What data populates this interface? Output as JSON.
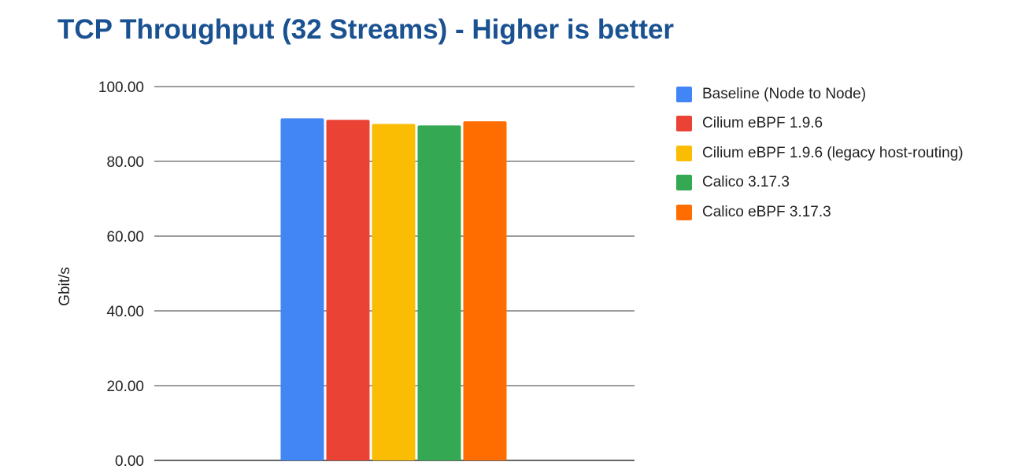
{
  "chart_data": {
    "type": "bar",
    "title": "TCP Throughput (32 Streams) - Higher is better",
    "ylabel": "Gbit/s",
    "xlabel": "",
    "ylim": [
      0,
      100
    ],
    "yticks": [
      "0.00",
      "20.00",
      "40.00",
      "60.00",
      "80.00",
      "100.00"
    ],
    "grid": true,
    "legend_position": "right",
    "series": [
      {
        "name": "Baseline (Node to Node)",
        "value": 91.5,
        "color": "#4285f4"
      },
      {
        "name": "Cilium eBPF 1.9.6",
        "value": 91.1,
        "color": "#ea4335"
      },
      {
        "name": "Cilium eBPF 1.9.6 (legacy host-routing)",
        "value": 90.0,
        "color": "#fbbc04"
      },
      {
        "name": "Calico 3.17.3",
        "value": 89.6,
        "color": "#34a853"
      },
      {
        "name": "Calico eBPF 3.17.3",
        "value": 90.7,
        "color": "#ff6d01"
      }
    ]
  }
}
